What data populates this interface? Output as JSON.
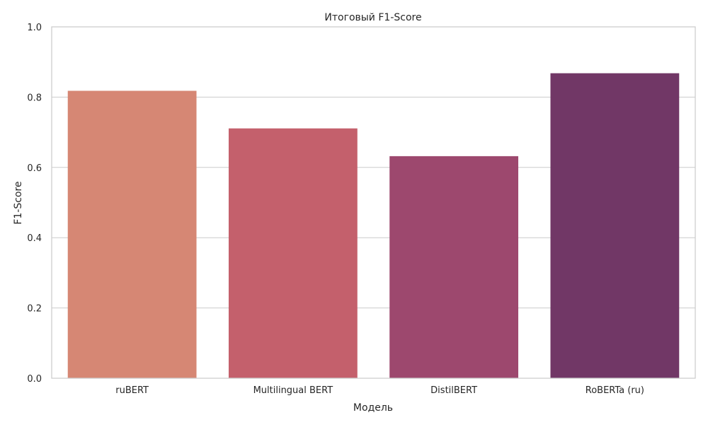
{
  "chart_data": {
    "type": "bar",
    "title": "Итоговый F1-Score",
    "xlabel": "Модель",
    "ylabel": "F1-Score",
    "categories": [
      "ruBERT",
      "Multilingual BERT",
      "DistilBERT",
      "RoBERTa (ru)"
    ],
    "values": [
      0.818,
      0.711,
      0.632,
      0.868
    ],
    "ylim": [
      0,
      1.0
    ],
    "yticks": [
      "0.0",
      "0.2",
      "0.4",
      "0.6",
      "0.8",
      "1.0"
    ],
    "grid": "horizontal",
    "colors": [
      "#d68774",
      "#c4606c",
      "#9d486e",
      "#713766"
    ],
    "grid_color": "#cccccc",
    "spine_color": "#cccccc"
  }
}
